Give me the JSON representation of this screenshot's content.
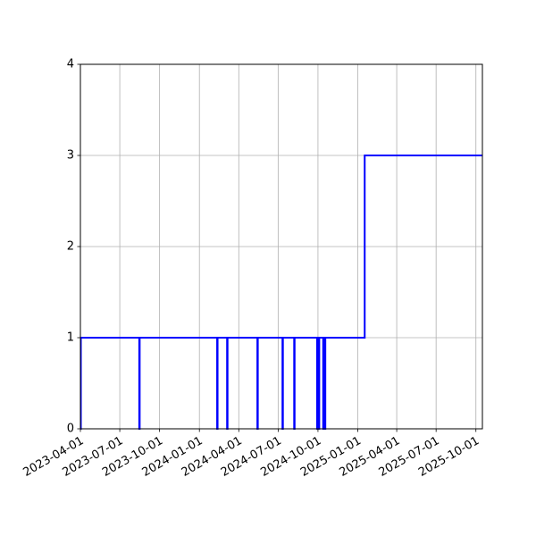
{
  "chart_data": {
    "type": "line",
    "title": "",
    "xlabel": "",
    "ylabel": "",
    "x_axis": "date",
    "xlim": [
      "2023-04-01",
      "2025-10-16"
    ],
    "ylim": [
      0,
      4
    ],
    "grid": true,
    "x_ticks": [
      "2023-04-01",
      "2023-07-01",
      "2023-10-01",
      "2024-01-01",
      "2024-04-01",
      "2024-07-01",
      "2024-10-01",
      "2025-01-01",
      "2025-04-01",
      "2025-07-01",
      "2025-10-01"
    ],
    "y_ticks": [
      "0",
      "1",
      "2",
      "3",
      "4"
    ],
    "series": [
      {
        "color": "#0000ff",
        "step": true,
        "points": [
          {
            "x": "2023-04-01",
            "y": 0
          },
          {
            "x": "2023-04-02",
            "y": 1
          },
          {
            "x": "2023-08-15",
            "y": 1
          },
          {
            "x": "2023-08-15",
            "y": 0
          },
          {
            "x": "2023-08-16",
            "y": 1
          },
          {
            "x": "2024-02-11",
            "y": 1
          },
          {
            "x": "2024-02-11",
            "y": 0
          },
          {
            "x": "2024-02-12",
            "y": 1
          },
          {
            "x": "2024-03-05",
            "y": 1
          },
          {
            "x": "2024-03-05",
            "y": 0
          },
          {
            "x": "2024-03-06",
            "y": 1
          },
          {
            "x": "2024-05-14",
            "y": 1
          },
          {
            "x": "2024-05-14",
            "y": 0
          },
          {
            "x": "2024-05-15",
            "y": 1
          },
          {
            "x": "2024-07-11",
            "y": 1
          },
          {
            "x": "2024-07-11",
            "y": 0
          },
          {
            "x": "2024-07-12",
            "y": 1
          },
          {
            "x": "2024-08-07",
            "y": 1
          },
          {
            "x": "2024-08-07",
            "y": 0
          },
          {
            "x": "2024-08-08",
            "y": 1
          },
          {
            "x": "2024-09-29",
            "y": 1
          },
          {
            "x": "2024-09-29",
            "y": 0
          },
          {
            "x": "2024-09-30",
            "y": 1
          },
          {
            "x": "2024-10-03",
            "y": 1
          },
          {
            "x": "2024-10-03",
            "y": 0
          },
          {
            "x": "2024-10-04",
            "y": 1
          },
          {
            "x": "2024-10-13",
            "y": 1
          },
          {
            "x": "2024-10-13",
            "y": 0
          },
          {
            "x": "2024-10-14",
            "y": 1
          },
          {
            "x": "2024-10-17",
            "y": 1
          },
          {
            "x": "2024-10-17",
            "y": 0
          },
          {
            "x": "2024-10-18",
            "y": 1
          },
          {
            "x": "2025-01-17",
            "y": 1
          },
          {
            "x": "2025-01-17",
            "y": 3
          },
          {
            "x": "2025-10-16",
            "y": 3
          }
        ]
      }
    ]
  }
}
